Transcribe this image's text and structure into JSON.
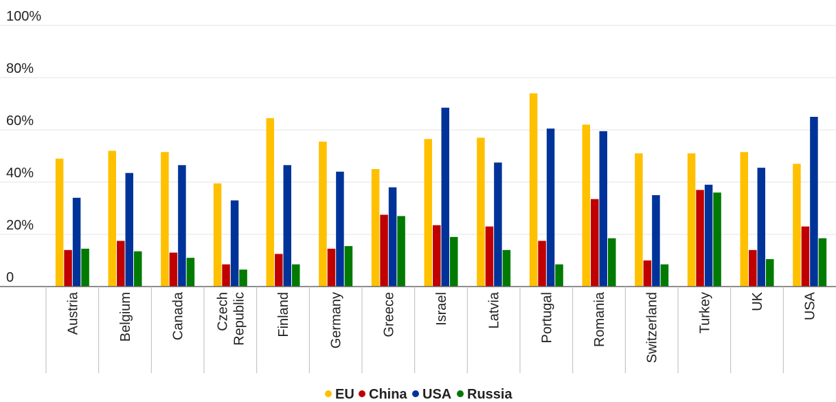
{
  "chart_data": {
    "type": "bar",
    "categories": [
      [
        "Austria"
      ],
      [
        "Belgium"
      ],
      [
        "Canada"
      ],
      [
        "Czech",
        "Republic"
      ],
      [
        "Finland"
      ],
      [
        "Germany"
      ],
      [
        "Greece"
      ],
      [
        "Israel"
      ],
      [
        "Latvia"
      ],
      [
        "Portugal"
      ],
      [
        "Romania"
      ],
      [
        "Switzerland"
      ],
      [
        "Turkey"
      ],
      [
        "UK"
      ],
      [
        "USA"
      ]
    ],
    "series": [
      {
        "name": "EU",
        "color": "#FFC000",
        "values": [
          49,
          52,
          51.5,
          39.5,
          64.5,
          55.5,
          45,
          56.5,
          57,
          74,
          62,
          51,
          51,
          51.5,
          47
        ]
      },
      {
        "name": "China",
        "color": "#C00000",
        "values": [
          14,
          17.5,
          13,
          8.5,
          12.5,
          14.5,
          27.5,
          23.5,
          23,
          17.5,
          33.5,
          10,
          37,
          14,
          23
        ]
      },
      {
        "name": "USA",
        "color": "#003399",
        "values": [
          34,
          43.5,
          46.5,
          33,
          46.5,
          44,
          38,
          68.5,
          47.5,
          60.5,
          59.5,
          35,
          39,
          45.5,
          65
        ]
      },
      {
        "name": "Russia",
        "color": "#007A00",
        "values": [
          14.5,
          13.5,
          11,
          6.5,
          8.5,
          15.5,
          27,
          19,
          14,
          8.5,
          18.5,
          8.5,
          36,
          10.5,
          18.5
        ]
      }
    ],
    "y_ticks": [
      "0",
      "20%",
      "40%",
      "60%",
      "80%",
      "100%"
    ],
    "y_tick_values": [
      0,
      20,
      40,
      60,
      80,
      100
    ],
    "ylim": [
      0,
      100
    ],
    "grid": true,
    "legend_position": "bottom-center"
  },
  "legend": [
    {
      "label": "EU",
      "color": "#FFC000"
    },
    {
      "label": "China",
      "color": "#C00000"
    },
    {
      "label": "USA",
      "color": "#003399"
    },
    {
      "label": "Russia",
      "color": "#007A00"
    }
  ]
}
